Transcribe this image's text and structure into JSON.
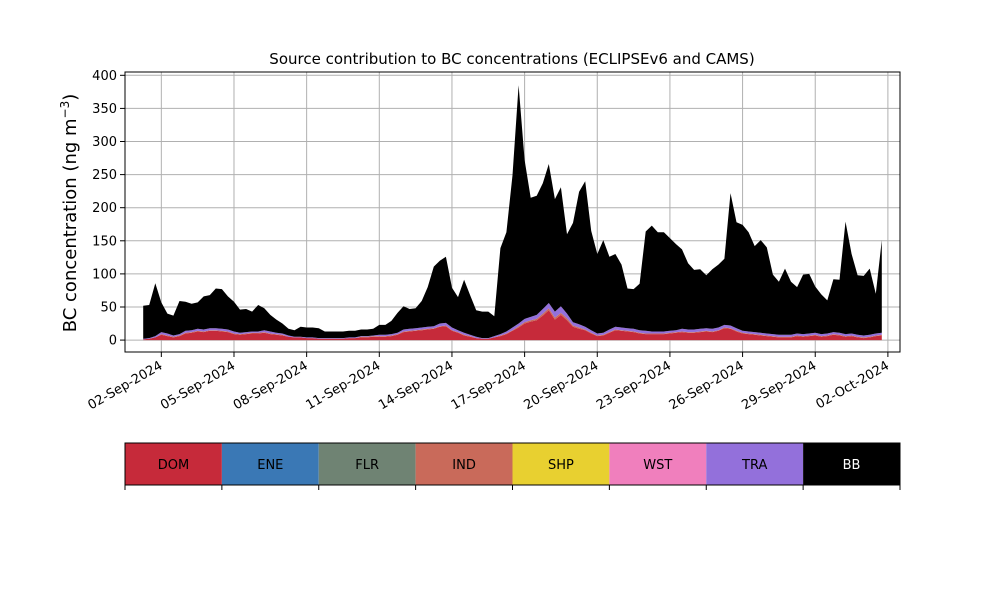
{
  "chart_data": {
    "type": "area",
    "title": "Source contribution to BC concentrations (ECLIPSEv6 and CAMS)",
    "xlabel": "",
    "ylabel": "BC concentration (ng m",
    "ylabel_unit_superscript": "−3",
    "ylabel_close": ")",
    "ylim": [
      -18,
      405
    ],
    "yticks": [
      "0",
      "50",
      "100",
      "150",
      "200",
      "250",
      "300",
      "350",
      "400"
    ],
    "ytick_values": [
      0,
      50,
      100,
      150,
      200,
      250,
      300,
      350,
      400
    ],
    "xlim": [
      "2024-08-31T12:00",
      "2024-10-02T12:00"
    ],
    "xticks": [
      "02-Sep-2024",
      "05-Sep-2024",
      "08-Sep-2024",
      "11-Sep-2024",
      "14-Sep-2024",
      "17-Sep-2024",
      "20-Sep-2024",
      "23-Sep-2024",
      "26-Sep-2024",
      "29-Sep-2024",
      "02-Oct-2024"
    ],
    "xtick_dates": [
      "2024-09-02",
      "2024-09-05",
      "2024-09-08",
      "2024-09-11",
      "2024-09-14",
      "2024-09-17",
      "2024-09-20",
      "2024-09-23",
      "2024-09-26",
      "2024-09-29",
      "2024-10-02"
    ],
    "grid": true,
    "stacked": true,
    "x": [
      "2024-09-01T06:00",
      "2024-09-01T12:00",
      "2024-09-01T18:00",
      "2024-09-02T00:00",
      "2024-09-02T06:00",
      "2024-09-02T12:00",
      "2024-09-02T18:00",
      "2024-09-03T00:00",
      "2024-09-03T06:00",
      "2024-09-03T12:00",
      "2024-09-03T18:00",
      "2024-09-04T00:00",
      "2024-09-04T06:00",
      "2024-09-04T12:00",
      "2024-09-04T18:00",
      "2024-09-05T00:00",
      "2024-09-05T06:00",
      "2024-09-05T12:00",
      "2024-09-05T18:00",
      "2024-09-06T00:00",
      "2024-09-06T06:00",
      "2024-09-06T12:00",
      "2024-09-06T18:00",
      "2024-09-07T00:00",
      "2024-09-07T06:00",
      "2024-09-07T12:00",
      "2024-09-07T18:00",
      "2024-09-08T00:00",
      "2024-09-08T06:00",
      "2024-09-08T12:00",
      "2024-09-08T18:00",
      "2024-09-09T00:00",
      "2024-09-09T06:00",
      "2024-09-09T12:00",
      "2024-09-09T18:00",
      "2024-09-10T00:00",
      "2024-09-10T06:00",
      "2024-09-10T12:00",
      "2024-09-10T18:00",
      "2024-09-11T00:00",
      "2024-09-11T06:00",
      "2024-09-11T12:00",
      "2024-09-11T18:00",
      "2024-09-12T00:00",
      "2024-09-12T06:00",
      "2024-09-12T12:00",
      "2024-09-12T18:00",
      "2024-09-13T00:00",
      "2024-09-13T06:00",
      "2024-09-13T12:00",
      "2024-09-13T18:00",
      "2024-09-14T00:00",
      "2024-09-14T06:00",
      "2024-09-14T12:00",
      "2024-09-14T18:00",
      "2024-09-15T00:00",
      "2024-09-15T06:00",
      "2024-09-15T12:00",
      "2024-09-15T18:00",
      "2024-09-16T00:00",
      "2024-09-16T06:00",
      "2024-09-16T12:00",
      "2024-09-16T18:00",
      "2024-09-17T00:00",
      "2024-09-17T06:00",
      "2024-09-17T12:00",
      "2024-09-17T18:00",
      "2024-09-18T00:00",
      "2024-09-18T06:00",
      "2024-09-18T12:00",
      "2024-09-18T18:00",
      "2024-09-19T00:00",
      "2024-09-19T06:00",
      "2024-09-19T12:00",
      "2024-09-19T18:00",
      "2024-09-20T00:00",
      "2024-09-20T06:00",
      "2024-09-20T12:00",
      "2024-09-20T18:00",
      "2024-09-21T00:00",
      "2024-09-21T06:00",
      "2024-09-21T12:00",
      "2024-09-21T18:00",
      "2024-09-22T00:00",
      "2024-09-22T06:00",
      "2024-09-22T12:00",
      "2024-09-22T18:00",
      "2024-09-23T00:00",
      "2024-09-23T06:00",
      "2024-09-23T12:00",
      "2024-09-23T18:00",
      "2024-09-24T00:00",
      "2024-09-24T06:00",
      "2024-09-24T12:00",
      "2024-09-24T18:00",
      "2024-09-25T00:00",
      "2024-09-25T06:00",
      "2024-09-25T12:00",
      "2024-09-25T18:00",
      "2024-09-26T00:00",
      "2024-09-26T06:00",
      "2024-09-26T12:00",
      "2024-09-26T18:00",
      "2024-09-27T00:00",
      "2024-09-27T06:00",
      "2024-09-27T12:00",
      "2024-09-27T18:00",
      "2024-09-28T00:00",
      "2024-09-28T06:00",
      "2024-09-28T12:00",
      "2024-09-28T18:00",
      "2024-09-29T00:00",
      "2024-09-29T06:00",
      "2024-09-29T12:00",
      "2024-09-29T18:00",
      "2024-09-30T00:00",
      "2024-09-30T06:00",
      "2024-09-30T12:00",
      "2024-09-30T18:00",
      "2024-10-01T00:00",
      "2024-10-01T06:00",
      "2024-10-01T12:00",
      "2024-10-01T18:00"
    ],
    "series": [
      {
        "name": "DOM",
        "color": "#c62a3a",
        "values": [
          1,
          2,
          4,
          8,
          6,
          4,
          6,
          10,
          11,
          13,
          12,
          14,
          14,
          13,
          12,
          9,
          8,
          9,
          10,
          10,
          11,
          9,
          8,
          7,
          5,
          4,
          4,
          3,
          3,
          2,
          2,
          2,
          2,
          2,
          3,
          3,
          4,
          4,
          5,
          5,
          5,
          6,
          8,
          12,
          13,
          14,
          15,
          16,
          17,
          20,
          21,
          14,
          11,
          7,
          5,
          3,
          2,
          2,
          4,
          6,
          9,
          14,
          19,
          25,
          28,
          30,
          37,
          45,
          31,
          38,
          30,
          20,
          17,
          15,
          10,
          6,
          7,
          11,
          15,
          14,
          13,
          12,
          10,
          9,
          9,
          9,
          9,
          10,
          11,
          12,
          11,
          11,
          12,
          13,
          12,
          14,
          18,
          17,
          13,
          10,
          9,
          8,
          7,
          6,
          5,
          4,
          4,
          4,
          6,
          5,
          6,
          7,
          5,
          6,
          8,
          7,
          5,
          6,
          4,
          3,
          4,
          6,
          7
        ]
      },
      {
        "name": "ENE",
        "color": "#3a78b5",
        "values": [
          0,
          0,
          0,
          0,
          0,
          0,
          0,
          0,
          0,
          0,
          0,
          0,
          0,
          0,
          0,
          0,
          0,
          0,
          0,
          0,
          0,
          0,
          0,
          0,
          0,
          0,
          0,
          0,
          0,
          0,
          0,
          0,
          0,
          0,
          0,
          0,
          0,
          0,
          0,
          0,
          0,
          0,
          0,
          0,
          0,
          0,
          0,
          0,
          0,
          0,
          0,
          0,
          0,
          0,
          0,
          0,
          0,
          0,
          0,
          0,
          0,
          0,
          0,
          0,
          0,
          0,
          0,
          0,
          0,
          0,
          0,
          0,
          0,
          0,
          0,
          0,
          0,
          0,
          0,
          0,
          0,
          0,
          0,
          0,
          0,
          0,
          0,
          0,
          0,
          0,
          0,
          0,
          0,
          0,
          0,
          0,
          0,
          0,
          0,
          0,
          0,
          0,
          0,
          0,
          0,
          0,
          0,
          0,
          0,
          0,
          0,
          0,
          0,
          0,
          0,
          0,
          0,
          0,
          0,
          0,
          0,
          0,
          0
        ]
      },
      {
        "name": "FLR",
        "color": "#6f8373",
        "values": [
          0,
          0,
          0,
          0,
          0,
          0,
          0,
          0,
          0,
          0,
          0,
          0,
          0,
          0,
          0,
          0,
          0,
          0,
          0,
          0,
          0,
          0,
          0,
          0,
          0,
          0,
          0,
          0,
          0,
          0,
          0,
          0,
          0,
          0,
          0,
          0,
          0,
          0,
          0,
          0,
          0,
          0,
          0,
          0,
          0,
          0,
          0,
          0,
          0,
          0,
          0,
          0,
          0,
          0,
          0,
          0,
          0,
          0,
          0,
          0,
          0,
          0,
          0,
          0,
          0,
          0,
          0,
          0,
          0,
          0,
          0,
          0,
          0,
          0,
          0,
          0,
          0,
          0,
          0,
          0,
          0,
          0,
          0,
          0,
          0,
          0,
          0,
          0,
          0,
          0,
          0,
          0,
          0,
          0,
          0,
          0,
          0,
          0,
          0,
          0,
          0,
          0,
          0,
          0,
          0,
          0,
          0,
          0,
          0,
          0,
          0,
          0,
          0,
          0,
          0,
          0,
          0,
          0,
          0,
          0,
          0,
          0,
          0
        ]
      },
      {
        "name": "IND",
        "color": "#c96a5a",
        "values": [
          0,
          0,
          0,
          1,
          1,
          1,
          1,
          1,
          1,
          1,
          1,
          1,
          1,
          1,
          1,
          1,
          1,
          1,
          1,
          1,
          1,
          1,
          1,
          1,
          0,
          0,
          0,
          0,
          0,
          0,
          0,
          0,
          0,
          0,
          0,
          0,
          1,
          1,
          1,
          1,
          1,
          1,
          1,
          1,
          1,
          1,
          1,
          1,
          1,
          1,
          1,
          1,
          1,
          1,
          1,
          0,
          0,
          0,
          0,
          1,
          1,
          1,
          2,
          2,
          2,
          2,
          3,
          3,
          3,
          3,
          3,
          2,
          2,
          1,
          1,
          1,
          1,
          1,
          1,
          1,
          1,
          1,
          1,
          1,
          1,
          1,
          1,
          1,
          1,
          1,
          1,
          1,
          1,
          1,
          1,
          1,
          1,
          1,
          1,
          1,
          1,
          1,
          1,
          1,
          1,
          1,
          1,
          1,
          1,
          1,
          1,
          1,
          1,
          1,
          1,
          1,
          1,
          1,
          1,
          1,
          1,
          1,
          1
        ]
      },
      {
        "name": "SHP",
        "color": "#e8d030",
        "values": [
          0,
          0,
          0,
          0,
          0,
          0,
          0,
          0,
          0,
          0,
          0,
          0,
          0,
          0,
          0,
          0,
          0,
          0,
          0,
          0,
          0,
          0,
          0,
          0,
          0,
          0,
          0,
          0,
          0,
          0,
          0,
          0,
          0,
          0,
          0,
          0,
          0,
          0,
          0,
          0,
          0,
          0,
          0,
          0,
          0,
          0,
          0,
          0,
          0,
          0,
          0,
          0,
          0,
          0,
          0,
          0,
          0,
          0,
          0,
          0,
          0,
          0,
          0,
          0,
          0,
          0,
          0,
          0,
          0,
          0,
          0,
          0,
          0,
          0,
          0,
          0,
          0,
          0,
          0,
          0,
          0,
          0,
          0,
          0,
          0,
          0,
          0,
          0,
          0,
          0,
          0,
          0,
          0,
          0,
          0,
          0,
          0,
          0,
          0,
          0,
          0,
          0,
          0,
          0,
          0,
          0,
          0,
          0,
          0,
          0,
          0,
          0,
          0,
          0,
          0,
          0,
          0,
          0,
          0,
          0,
          0,
          0,
          0
        ]
      },
      {
        "name": "WST",
        "color": "#f07fbd",
        "values": [
          0,
          0,
          0,
          0,
          0,
          0,
          0,
          0,
          0,
          0,
          0,
          0,
          0,
          0,
          0,
          0,
          0,
          0,
          0,
          0,
          0,
          0,
          0,
          0,
          0,
          0,
          0,
          0,
          0,
          0,
          0,
          0,
          0,
          0,
          0,
          0,
          0,
          0,
          0,
          0,
          0,
          0,
          0,
          0,
          0,
          0,
          0,
          0,
          0,
          0,
          0,
          0,
          0,
          0,
          0,
          0,
          0,
          0,
          0,
          0,
          0,
          0,
          0,
          0,
          0,
          0,
          0,
          0,
          0,
          0,
          0,
          0,
          0,
          0,
          0,
          0,
          0,
          0,
          0,
          0,
          0,
          0,
          0,
          0,
          0,
          0,
          0,
          0,
          0,
          0,
          0,
          0,
          0,
          0,
          0,
          0,
          0,
          0,
          0,
          0,
          0,
          0,
          0,
          0,
          0,
          0,
          0,
          0,
          0,
          0,
          0,
          0,
          0,
          0,
          0,
          0,
          0,
          0,
          0,
          0,
          0,
          0,
          0
        ]
      },
      {
        "name": "TRA",
        "color": "#9370db",
        "values": [
          1,
          1,
          2,
          3,
          3,
          2,
          2,
          3,
          3,
          3,
          3,
          3,
          3,
          3,
          3,
          3,
          2,
          2,
          2,
          2,
          3,
          3,
          2,
          2,
          2,
          1,
          1,
          1,
          1,
          1,
          1,
          1,
          1,
          1,
          1,
          1,
          1,
          1,
          1,
          2,
          2,
          2,
          2,
          3,
          3,
          3,
          3,
          3,
          3,
          4,
          4,
          4,
          3,
          3,
          2,
          2,
          1,
          1,
          2,
          2,
          3,
          4,
          4,
          5,
          5,
          6,
          7,
          8,
          9,
          10,
          7,
          5,
          5,
          4,
          4,
          3,
          3,
          4,
          4,
          4,
          4,
          4,
          4,
          4,
          3,
          3,
          3,
          3,
          3,
          4,
          4,
          4,
          4,
          4,
          4,
          4,
          4,
          4,
          4,
          3,
          3,
          3,
          3,
          3,
          3,
          3,
          3,
          3,
          3,
          3,
          3,
          3,
          3,
          3,
          3,
          3,
          3,
          3,
          3,
          3,
          3,
          3,
          3
        ]
      },
      {
        "name": "BB",
        "color": "#000000",
        "values": [
          50,
          50,
          80,
          45,
          30,
          30,
          50,
          44,
          40,
          40,
          50,
          50,
          60,
          60,
          50,
          45,
          35,
          35,
          30,
          40,
          33,
          25,
          20,
          15,
          10,
          10,
          15,
          15,
          15,
          15,
          10,
          10,
          10,
          10,
          10,
          10,
          10,
          10,
          10,
          15,
          15,
          20,
          30,
          35,
          30,
          30,
          40,
          60,
          90,
          95,
          100,
          60,
          50,
          80,
          60,
          40,
          40,
          40,
          30,
          130,
          150,
          230,
          360,
          240,
          180,
          180,
          190,
          210,
          170,
          180,
          120,
          150,
          200,
          220,
          150,
          120,
          140,
          110,
          110,
          95,
          60,
          60,
          70,
          150,
          160,
          150,
          150,
          140,
          130,
          120,
          100,
          90,
          90,
          80,
          90,
          95,
          100,
          200,
          160,
          160,
          150,
          130,
          140,
          130,
          90,
          80,
          100,
          80,
          70,
          90,
          90,
          70,
          60,
          50,
          80,
          80,
          170,
          120,
          90,
          90,
          100,
          60,
          140
        ]
      }
    ],
    "legend": {
      "placement": "bottom",
      "entries": [
        "DOM",
        "ENE",
        "FLR",
        "IND",
        "SHP",
        "WST",
        "TRA",
        "BB"
      ],
      "text_colors": [
        "#000000",
        "#000000",
        "#000000",
        "#000000",
        "#000000",
        "#000000",
        "#000000",
        "#ffffff"
      ]
    }
  }
}
